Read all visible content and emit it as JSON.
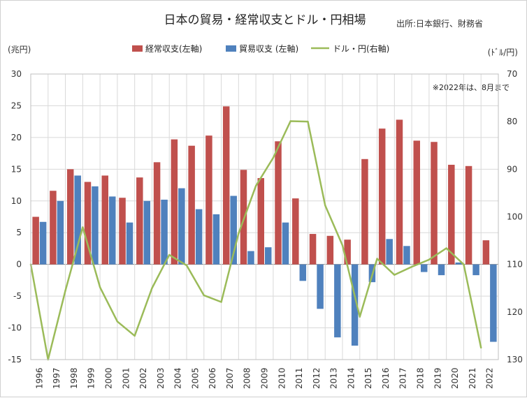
{
  "chart_data": {
    "type": "bar",
    "title": "日本の貿易・経常収支とドル・円相場",
    "source": "出所:日本銀行、財務省",
    "note": "※2022年は、8月まで",
    "y_left_unit": "(兆円)",
    "y_right_unit": "(ﾄﾞﾙ/円)",
    "y_left_range": [
      -15,
      30
    ],
    "y_left_ticks": [
      30,
      25,
      20,
      15,
      10,
      5,
      0,
      -5,
      -10,
      -15
    ],
    "y_right_range": [
      130,
      70
    ],
    "y_right_ticks": [
      70,
      80,
      90,
      100,
      110,
      120,
      130
    ],
    "grid": "vertical lines between years, horizontal at 5-unit steps",
    "legend_position": "top-center",
    "categories": [
      "1996",
      "1997",
      "1998",
      "1999",
      "2000",
      "2001",
      "2002",
      "2003",
      "2004",
      "2005",
      "2006",
      "2007",
      "2008",
      "2009",
      "2010",
      "2011",
      "2012",
      "2013",
      "2014",
      "2015",
      "2016",
      "2017",
      "2018",
      "2019",
      "2020",
      "2021",
      "2022"
    ],
    "series": [
      {
        "name": "経常収支(左軸)",
        "type": "bar",
        "axis": "left",
        "color": "#c0504d",
        "values": [
          7.5,
          11.6,
          15.0,
          13.0,
          14.0,
          10.5,
          13.7,
          16.1,
          19.7,
          18.7,
          20.3,
          24.9,
          14.9,
          13.6,
          19.4,
          10.4,
          4.8,
          4.5,
          3.9,
          16.6,
          21.4,
          22.8,
          19.5,
          19.3,
          15.7,
          15.5,
          3.8
        ]
      },
      {
        "name": "貿易収支 (左軸)",
        "type": "bar",
        "axis": "left",
        "color": "#4f81bd",
        "values": [
          6.7,
          10.0,
          14.0,
          12.3,
          10.7,
          6.6,
          10.0,
          10.2,
          12.0,
          8.7,
          7.9,
          10.8,
          2.1,
          2.7,
          6.6,
          -2.6,
          -7.0,
          -11.5,
          -12.8,
          -2.8,
          4.0,
          2.9,
          -1.2,
          -1.7,
          0.3,
          -1.7,
          -12.2
        ]
      },
      {
        "name": "ドル・円(右軸)",
        "type": "line",
        "axis": "right",
        "color": "#9bbb59",
        "values": [
          110.0,
          130.0,
          115.5,
          102.2,
          114.8,
          122.0,
          125.0,
          115.0,
          108.0,
          110.2,
          116.5,
          117.9,
          103.5,
          93.5,
          87.6,
          79.9,
          80.0,
          97.6,
          106.0,
          121.0,
          108.8,
          112.2,
          110.5,
          109.0,
          106.6,
          110.0,
          127.5
        ]
      }
    ]
  }
}
